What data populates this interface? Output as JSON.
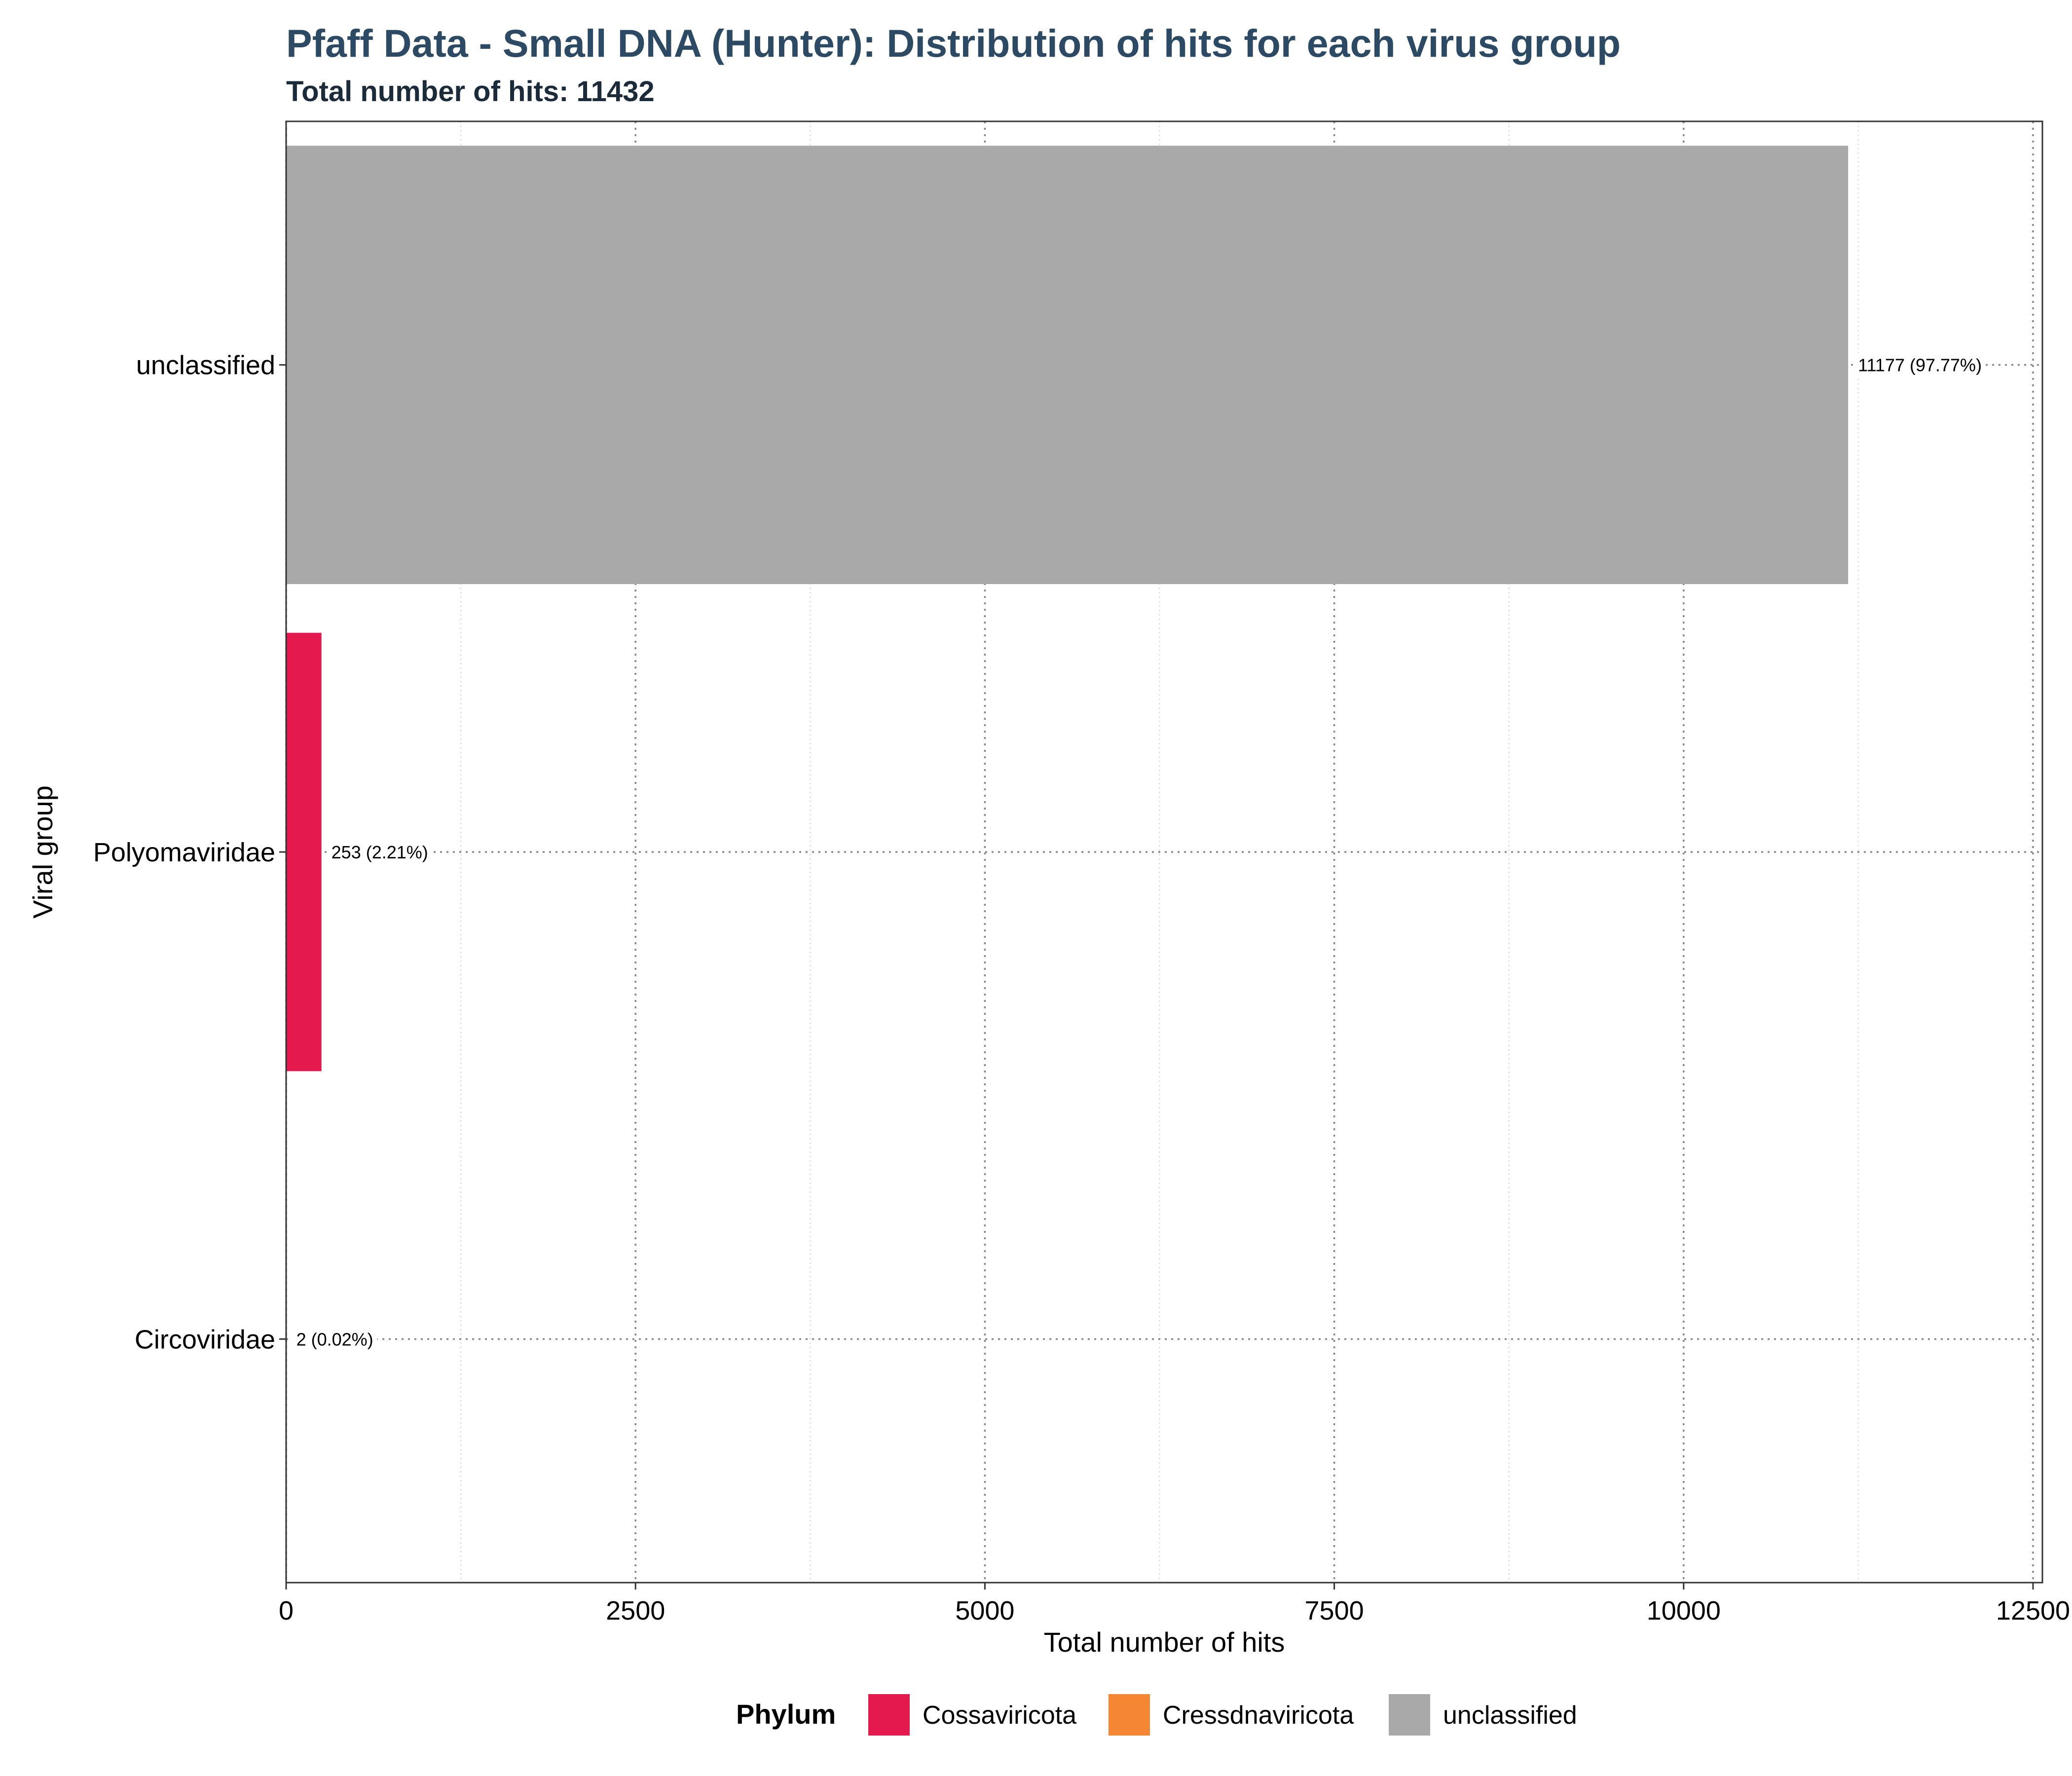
{
  "chart_data": {
    "type": "bar",
    "orientation": "horizontal",
    "title": "Pfaff Data - Small DNA (Hunter): Distribution of hits for each virus group",
    "subtitle": "Total number of hits: 11432",
    "xlabel": "Total number of hits",
    "ylabel": "Viral group",
    "xlim": [
      0,
      12500
    ],
    "x_ticks": [
      0,
      2500,
      5000,
      7500,
      10000,
      12500
    ],
    "x_tick_labels": [
      "0",
      "2500",
      "5000",
      "7500",
      "10000",
      "12500"
    ],
    "categories": [
      "unclassified",
      "Polyomaviridae",
      "Circoviridae"
    ],
    "values": [
      11177,
      253,
      2
    ],
    "bar_labels": [
      "11177 (97.77%)",
      "253 (2.21%)",
      "2 (0.02%)"
    ],
    "bar_phylum": [
      "unclassified",
      "Cossaviricota",
      "Cressdnaviricota"
    ],
    "grid": true,
    "legend": {
      "title": "Phylum",
      "position": "bottom",
      "entries": [
        {
          "label": "Cossaviricota",
          "color": "#E41A4E"
        },
        {
          "label": "Cressdnaviricota",
          "color": "#F58634"
        },
        {
          "label": "unclassified",
          "color": "#A9A9A9"
        }
      ]
    },
    "colors": {
      "title": "#2C4A63",
      "subtitle": "#1C2B3A"
    }
  }
}
